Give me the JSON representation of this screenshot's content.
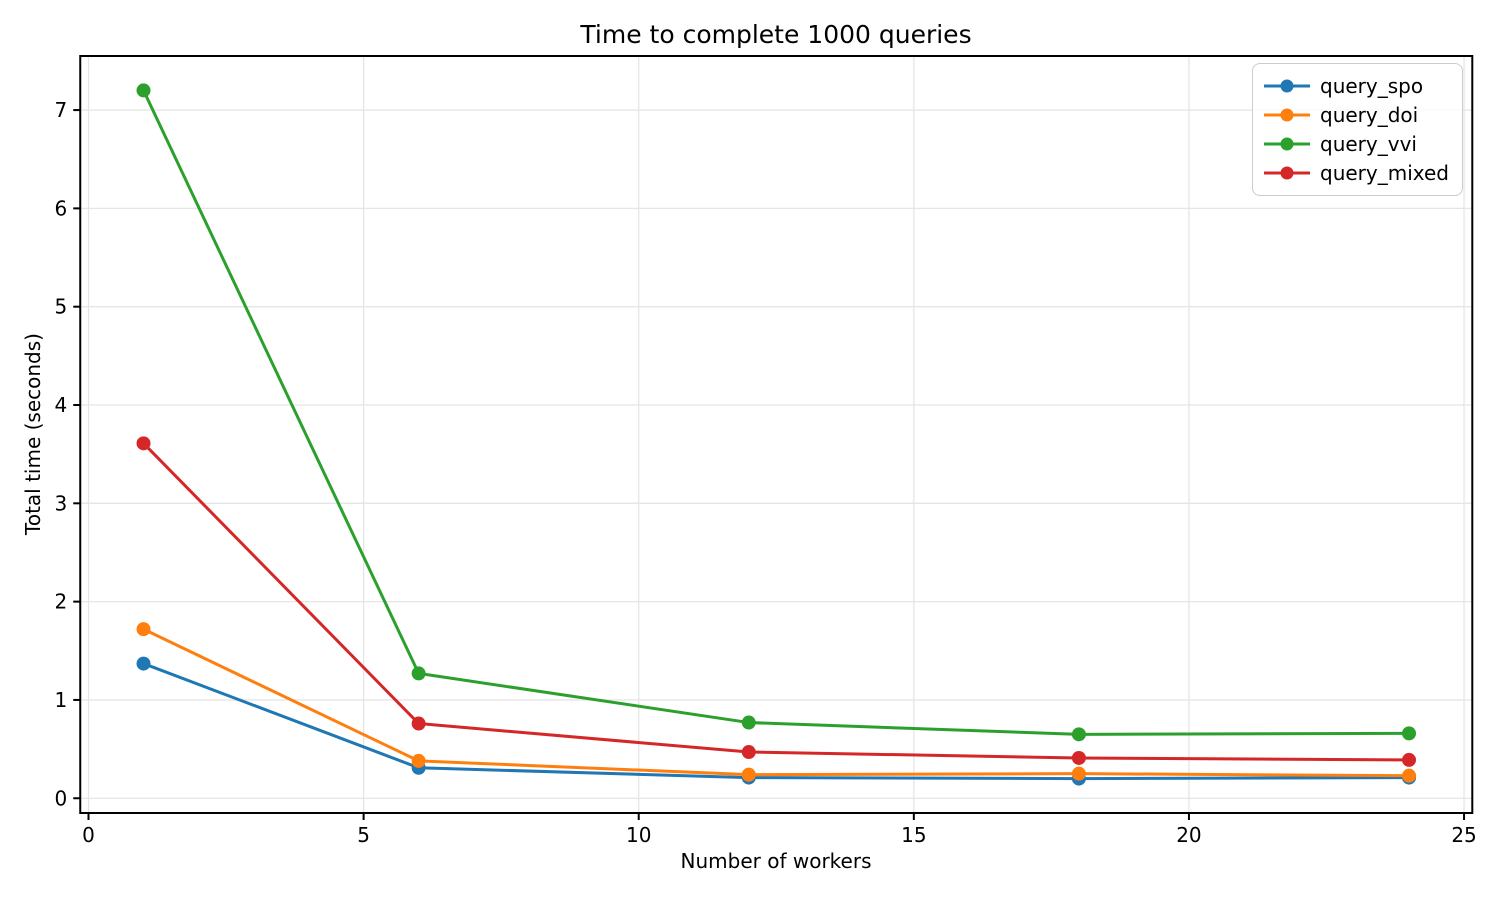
{
  "chart_data": {
    "type": "line",
    "title": "Time to complete 1000 queries",
    "xlabel": "Number of workers",
    "ylabel": "Total time (seconds)",
    "x": [
      1,
      6,
      12,
      18,
      24
    ],
    "series": [
      {
        "name": "query_spo",
        "color": "#1f77b4",
        "values": [
          1.37,
          0.31,
          0.21,
          0.2,
          0.21
        ]
      },
      {
        "name": "query_doi",
        "color": "#ff7f0e",
        "values": [
          1.72,
          0.38,
          0.24,
          0.25,
          0.23
        ]
      },
      {
        "name": "query_vvi",
        "color": "#2ca02c",
        "values": [
          7.2,
          1.27,
          0.77,
          0.65,
          0.66
        ]
      },
      {
        "name": "query_mixed",
        "color": "#d62728",
        "values": [
          3.61,
          0.76,
          0.47,
          0.41,
          0.39
        ]
      }
    ],
    "xticks": [
      0,
      5,
      10,
      15,
      20,
      25
    ],
    "yticks": [
      0,
      1,
      2,
      3,
      4,
      5,
      6,
      7
    ],
    "xlim": [
      -0.15,
      25.15
    ],
    "ylim": [
      -0.15,
      7.55
    ],
    "grid": true,
    "legend": {
      "position": "upper right",
      "entries": [
        "query_spo",
        "query_doi",
        "query_vvi",
        "query_mixed"
      ]
    },
    "colors": {
      "grid": "#e5e5e5",
      "spine": "#000000",
      "text": "#000000",
      "background": "#ffffff"
    }
  }
}
